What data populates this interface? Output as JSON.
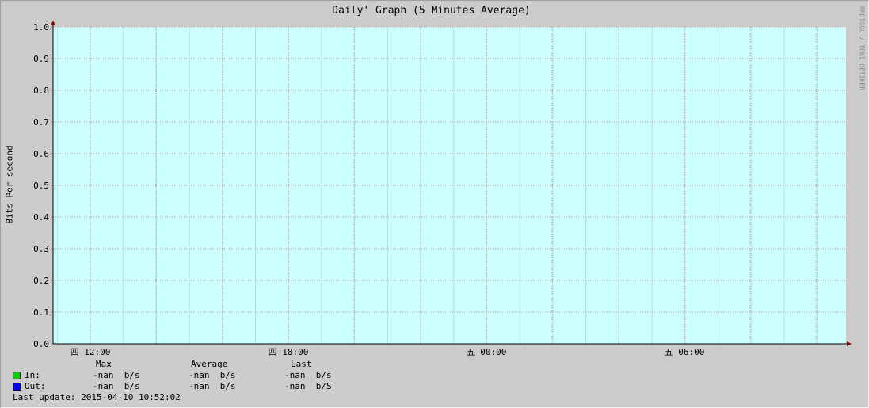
{
  "chart_data": {
    "type": "line",
    "title": "Daily' Graph (5 Minutes Average)",
    "ylabel": "Bits Per second",
    "ylim": [
      0,
      1
    ],
    "yticks": [
      "0.0",
      "0.1",
      "0.2",
      "0.3",
      "0.4",
      "0.5",
      "0.6",
      "0.7",
      "0.8",
      "0.9",
      "1.0"
    ],
    "xticks": [
      "四 12:00",
      "四 18:00",
      "五 00:00",
      "五 06:00"
    ],
    "grid": true,
    "plot_background": "#ccffff",
    "series": [
      {
        "name": "In:",
        "color": "#00cc00",
        "values": []
      },
      {
        "name": "Out:",
        "color": "#0000ff",
        "values": []
      }
    ]
  },
  "legend": {
    "headers": {
      "max": "Max",
      "average": "Average",
      "last": "Last"
    },
    "rows": [
      {
        "label": "In:",
        "color": "#00cc00",
        "max": "-nan  b/s",
        "average": "-nan  b/s",
        "last": "-nan  b/s"
      },
      {
        "label": "Out:",
        "color": "#0000ff",
        "max": "-nan  b/s",
        "average": "-nan  b/s",
        "last": "-nan  b/S"
      }
    ],
    "last_update": "Last update: 2015-04-10 10:52:02"
  },
  "watermark": "RRDTOOL / TOBI OETIKER"
}
